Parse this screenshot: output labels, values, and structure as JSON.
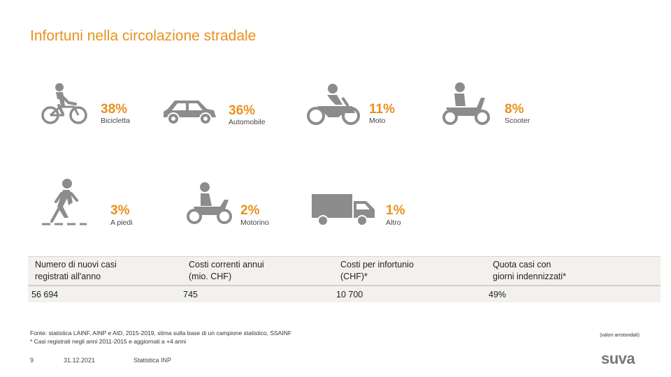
{
  "title": "Infortuni nella circolazione stradale",
  "categories": [
    {
      "percent": "38%",
      "label": "Bicicletta",
      "icon": "bicycle-icon"
    },
    {
      "percent": "36%",
      "label": "Automobile",
      "icon": "car-icon"
    },
    {
      "percent": "11%",
      "label": "Moto",
      "icon": "motorcycle-icon"
    },
    {
      "percent": "8%",
      "label": "Scooter",
      "icon": "scooter-icon"
    },
    {
      "percent": "3%",
      "label": "A piedi",
      "icon": "pedestrian-icon"
    },
    {
      "percent": "2%",
      "label": "Motorino",
      "icon": "moped-icon"
    },
    {
      "percent": "1%",
      "label": "Altro",
      "icon": "truck-icon"
    }
  ],
  "stats": [
    {
      "label_line1": "Numero di nuovi casi",
      "label_line2": "registrati all'anno",
      "value": "56 694"
    },
    {
      "label_line1": "Costi correnti annui",
      "label_line2": "(mio. CHF)",
      "value": "745"
    },
    {
      "label_line1": "Costi per infortunio",
      "label_line2": "(CHF)*",
      "value": "10 700"
    },
    {
      "label_line1": "Quota casi con",
      "label_line2": "giorni indennizzati*",
      "value": "49%"
    }
  ],
  "footer": {
    "source": "Fonte: statistica LAINF, AINP e AID, 2015-2019, stima sulla base di un campione statistico, SSAINF",
    "note": "* Casi registrati negli anni 2011-2015 e aggiornati a +4 anni",
    "rounding": "(valori arrotondati)",
    "page_number": "9",
    "date": "31.12.2021",
    "doc_title": "Statistica INP",
    "logo": "suva"
  },
  "colors": {
    "accent": "#e8911e",
    "icon_gray": "#8c8c8c",
    "band": "#f3f1ee"
  }
}
